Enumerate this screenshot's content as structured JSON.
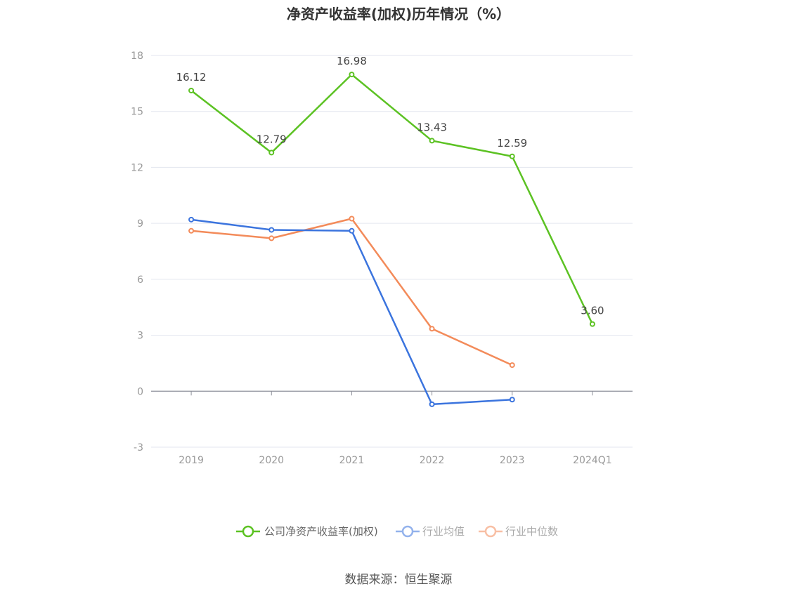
{
  "title": "净资产收益率(加权)历年情况（%）",
  "source": "数据来源：恒生聚源",
  "chart_data": {
    "type": "line",
    "title": "净资产收益率(加权)历年情况（%）",
    "categories": [
      "2019",
      "2020",
      "2021",
      "2022",
      "2023",
      "2024Q1"
    ],
    "ylim": [
      -3,
      18
    ],
    "yticks": [
      -3,
      0,
      3,
      6,
      9,
      12,
      15,
      18
    ],
    "grid": true,
    "legend_position": "bottom",
    "series": [
      {
        "name": "公司净资产收益率(加权)",
        "color": "#5cc223",
        "values": [
          16.12,
          12.79,
          16.98,
          13.43,
          12.59,
          3.6
        ],
        "labels": [
          "16.12",
          "12.79",
          "16.98",
          "13.43",
          "12.59",
          "3.60"
        ]
      },
      {
        "name": "行业均值",
        "color": "#3b74de",
        "values": [
          9.2,
          8.65,
          8.6,
          -0.7,
          -0.45,
          null
        ]
      },
      {
        "name": "行业中位数",
        "color": "#f38b5a",
        "values": [
          8.6,
          8.2,
          9.25,
          3.35,
          1.4,
          null
        ]
      }
    ]
  }
}
